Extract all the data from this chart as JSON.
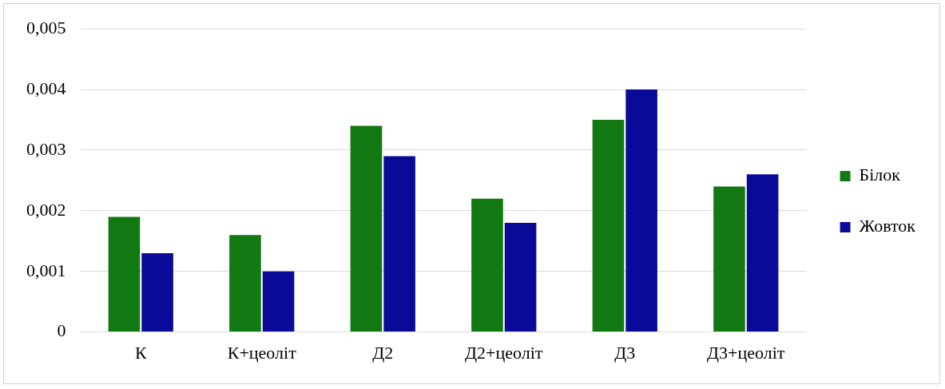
{
  "chart_data": {
    "type": "bar",
    "categories": [
      "К",
      "К+цеоліт",
      "Д2",
      "Д2+цеоліт",
      "Д3",
      "Д3+цеоліт"
    ],
    "series": [
      {
        "name": "Білок",
        "color": "#127812",
        "values": [
          0.0019,
          0.0016,
          0.0034,
          0.0022,
          0.0035,
          0.0024
        ]
      },
      {
        "name": "Жовток",
        "color": "#0a0a99",
        "values": [
          0.0013,
          0.001,
          0.0029,
          0.0018,
          0.004,
          0.0026
        ]
      }
    ],
    "ylim": [
      0,
      0.005
    ],
    "yticks": [
      {
        "value": 0,
        "label": "0"
      },
      {
        "value": 0.001,
        "label": "0,001"
      },
      {
        "value": 0.002,
        "label": "0,002"
      },
      {
        "value": 0.003,
        "label": "0,003"
      },
      {
        "value": 0.004,
        "label": "0,004"
      },
      {
        "value": 0.005,
        "label": "0,005"
      }
    ],
    "grid": "y",
    "legend": "right"
  }
}
